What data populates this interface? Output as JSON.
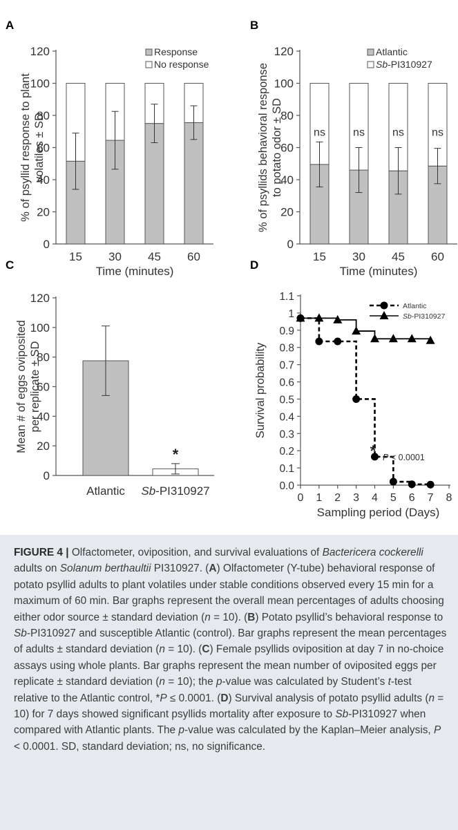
{
  "chart_data": [
    {
      "panel": "A",
      "type": "bar",
      "stacked": true,
      "categories": [
        "15",
        "30",
        "45",
        "60"
      ],
      "series": [
        {
          "name": "Response",
          "values": [
            51.5,
            64.5,
            75,
            75.5
          ],
          "sd": [
            17.5,
            18,
            12,
            10.5
          ],
          "color": "#c0c0c0"
        },
        {
          "name": "No response",
          "values": [
            48.5,
            35.5,
            25,
            24.5
          ],
          "color": "#ffffff"
        }
      ],
      "xlabel": "Time (minutes)",
      "ylabel": [
        "% of psyllid response to plant",
        "volatiles ± SD"
      ],
      "ylim": [
        0,
        120
      ],
      "yticks": [
        0,
        20,
        40,
        60,
        80,
        100,
        120
      ],
      "legend": "top-right",
      "grid": false
    },
    {
      "panel": "B",
      "type": "bar",
      "stacked": true,
      "categories": [
        "15",
        "30",
        "45",
        "60"
      ],
      "series": [
        {
          "name": "Atlantic",
          "values": [
            49.5,
            46,
            45.5,
            48.5
          ],
          "sd": [
            14,
            14,
            14.5,
            11
          ],
          "color": "#c0c0c0"
        },
        {
          "name": "Sb-PI310927",
          "values": [
            50.5,
            54,
            54.5,
            51.5
          ],
          "color": "#ffffff"
        }
      ],
      "annotations": [
        "ns",
        "ns",
        "ns",
        "ns"
      ],
      "xlabel": "Time (minutes)",
      "ylabel": [
        "% of psyllids behavioral response",
        "to potato odor ± SD"
      ],
      "ylim": [
        0,
        120
      ],
      "yticks": [
        0,
        20,
        40,
        60,
        80,
        100,
        120
      ],
      "legend": "top-right",
      "grid": false
    },
    {
      "panel": "C",
      "type": "bar",
      "categories": [
        "Atlantic",
        "Sb-PI310927"
      ],
      "values": [
        77.5,
        4.5
      ],
      "sd": [
        23.5,
        3.5
      ],
      "colors": [
        "#c0c0c0",
        "#ffffff"
      ],
      "annotation": "*",
      "xlabel": "",
      "ylabel": [
        "Mean # of eggs oviposited",
        "per replicate ± SD"
      ],
      "ylim": [
        0,
        120
      ],
      "yticks": [
        0,
        20,
        40,
        60,
        80,
        100,
        120
      ],
      "grid": false
    },
    {
      "panel": "D",
      "type": "line",
      "step": true,
      "series": [
        {
          "name": "Atlantic",
          "x": [
            0,
            1,
            2,
            3,
            4,
            5,
            6,
            7
          ],
          "y": [
            0.97,
            0.835,
            0.835,
            0.5,
            0.165,
            0.02,
            0.005,
            0.003
          ],
          "marker": "circle",
          "dashed": true
        },
        {
          "name": "Sb-PI310927",
          "x": [
            0,
            1,
            2,
            3,
            4,
            5,
            6,
            7
          ],
          "y": [
            0.97,
            0.97,
            0.96,
            0.895,
            0.85,
            0.85,
            0.85,
            0.84
          ],
          "marker": "triangle",
          "dashed": false
        }
      ],
      "xlabel": "Sampling period (Days)",
      "ylabel": "Survival probability",
      "xlim": [
        0,
        8
      ],
      "ylim": [
        0,
        1.1
      ],
      "xticks": [
        0,
        1,
        2,
        3,
        4,
        5,
        6,
        7,
        8
      ],
      "yticks": [
        "0.0",
        "0.1",
        "0.2",
        "0.3",
        "0.4",
        "0.5",
        "0.6",
        "0.7",
        "0.8",
        "0.9",
        "1",
        "1.1"
      ],
      "annotation": {
        "star": "*",
        "text": "P < 0.0001"
      },
      "legend": "top-right",
      "grid": false
    }
  ],
  "panel_labels": {
    "a": "A",
    "b": "B",
    "c": "C",
    "d": "D"
  },
  "caption": {
    "label": "FIGURE 4 |",
    "segments": [
      {
        "t": " Olfactometer, oviposition, and survival evaluations of "
      },
      {
        "t": "Bactericera cockerelli",
        "i": true
      },
      {
        "t": " adults on "
      },
      {
        "t": "Solanum berthaultii",
        "i": true
      },
      {
        "t": " PI310927. ("
      },
      {
        "t": "A",
        "b": true
      },
      {
        "t": ") Olfactometer (Y-tube) behavioral response of potato psyllid adults to plant volatiles under stable conditions observed every 15 min for a maximum of 60 min. Bar graphs represent the overall mean percentages of adults choosing either odor source ± standard deviation ("
      },
      {
        "t": "n",
        "i": true
      },
      {
        "t": " = 10). ("
      },
      {
        "t": "B",
        "b": true
      },
      {
        "t": ") Potato psyllid’s behavioral response to "
      },
      {
        "t": "Sb",
        "i": true
      },
      {
        "t": "-PI310927 and susceptible Atlantic (control). Bar graphs represent the mean percentages of adults ± standard deviation ("
      },
      {
        "t": "n",
        "i": true
      },
      {
        "t": " = 10). ("
      },
      {
        "t": "C",
        "b": true
      },
      {
        "t": ") Female psyllids oviposition at day 7 in no-choice assays using whole plants. Bar graphs represent the mean number of oviposited eggs per replicate ± standard deviation ("
      },
      {
        "t": "n",
        "i": true
      },
      {
        "t": " = 10); the "
      },
      {
        "t": "p",
        "i": true
      },
      {
        "t": "-value was calculated by Student’s "
      },
      {
        "t": "t",
        "i": true
      },
      {
        "t": "-test relative to the Atlantic control, *"
      },
      {
        "t": "P",
        "i": true
      },
      {
        "t": " ≤ 0.0001. ("
      },
      {
        "t": "D",
        "b": true
      },
      {
        "t": ") Survival analysis of potato psyllid adults ("
      },
      {
        "t": "n",
        "i": true
      },
      {
        "t": " = 10) for 7 days showed significant psyllids mortality after exposure to "
      },
      {
        "t": "Sb",
        "i": true
      },
      {
        "t": "-PI310927 when compared with Atlantic plants. The "
      },
      {
        "t": "p",
        "i": true
      },
      {
        "t": "-value was calculated by the Kaplan–Meier analysis, "
      },
      {
        "t": "P",
        "i": true
      },
      {
        "t": " < 0.0001. SD, standard deviation; ns, no significance."
      }
    ]
  }
}
